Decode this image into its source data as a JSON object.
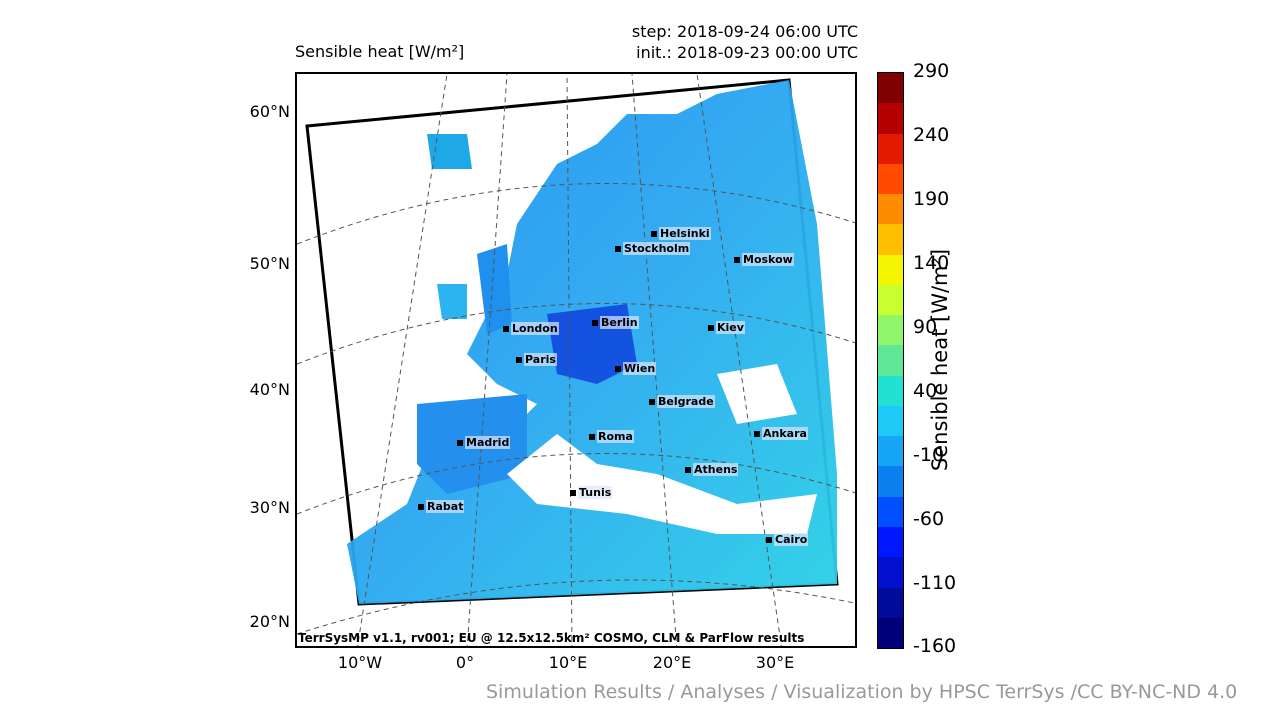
{
  "header": {
    "title": "Sensible heat [W/m²]",
    "step": "step: 2018-09-24 06:00 UTC",
    "init": "init.: 2018-09-23 00:00 UTC"
  },
  "map": {
    "lat_labels": [
      "60°N",
      "50°N",
      "40°N",
      "30°N",
      "20°N"
    ],
    "lon_labels": [
      "10°W",
      "0°",
      "10°E",
      "20°E",
      "30°E"
    ],
    "cities": [
      {
        "name": "Helsinki"
      },
      {
        "name": "Stockholm"
      },
      {
        "name": "Moskow"
      },
      {
        "name": "London"
      },
      {
        "name": "Berlin"
      },
      {
        "name": "Kiev"
      },
      {
        "name": "Paris"
      },
      {
        "name": "Wien"
      },
      {
        "name": "Belgrade"
      },
      {
        "name": "Madrid"
      },
      {
        "name": "Roma"
      },
      {
        "name": "Ankara"
      },
      {
        "name": "Athens"
      },
      {
        "name": "Tunis"
      },
      {
        "name": "Rabat"
      },
      {
        "name": "Cairo"
      }
    ],
    "footer_note": "TerrSysMP v1.1, rv001; EU @ 12.5x12.5km² COSMO, CLM & ParFlow results"
  },
  "colorbar": {
    "label": "Sensible heat [W/m²]",
    "ticks": [
      "290",
      "240",
      "190",
      "140",
      "90",
      "40",
      "-10",
      "-60",
      "-110",
      "-160"
    ],
    "colors": [
      "#7f0000",
      "#b50000",
      "#e41a00",
      "#ff4a00",
      "#ff8c00",
      "#ffbf00",
      "#f5f500",
      "#c8ff2e",
      "#8ff56a",
      "#5ee895",
      "#22e0d2",
      "#1fc9f5",
      "#16a6f5",
      "#0b80f0",
      "#0050ff",
      "#0018ff",
      "#0010cc",
      "#000c99",
      "#00007a"
    ]
  },
  "credit": "Simulation Results / Analyses / Visualization by HPSC TerrSys /CC BY-NC-ND 4.0"
}
